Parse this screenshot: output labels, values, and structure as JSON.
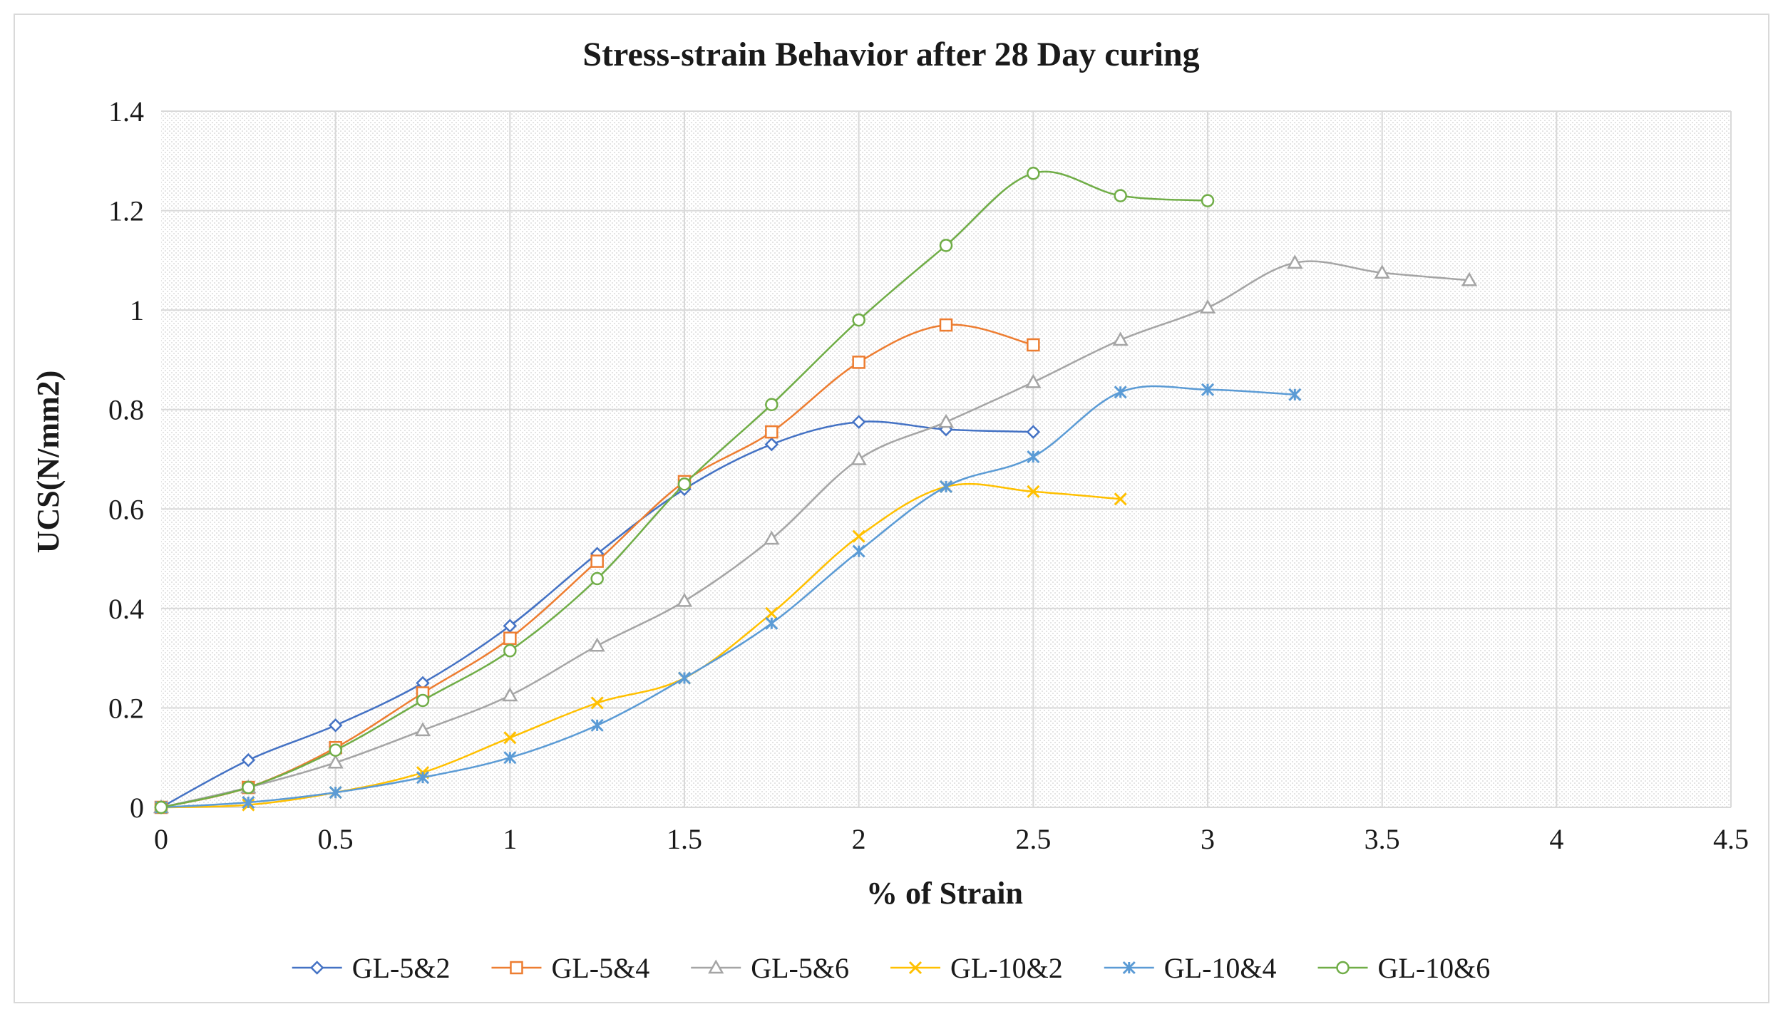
{
  "chart_data": {
    "type": "line",
    "title": "Stress-strain Behavior after 28 Day curing",
    "xlabel": "% of Strain",
    "ylabel": "UCS(N/mm2)",
    "xlim": [
      0,
      4.5
    ],
    "ylim": [
      0,
      1.4
    ],
    "xticks": [
      0,
      0.5,
      1,
      1.5,
      2,
      2.5,
      3,
      3.5,
      4,
      4.5
    ],
    "xtick_labels": [
      "0",
      "0.5",
      "1",
      "1.5",
      "2",
      "2.5",
      "3",
      "3.5",
      "4",
      "4.5"
    ],
    "yticks": [
      0,
      0.2,
      0.4,
      0.6,
      0.8,
      1,
      1.2,
      1.4
    ],
    "ytick_labels": [
      "0",
      "0.2",
      "0.4",
      "0.6",
      "0.8",
      "1",
      "1.2",
      "1.4"
    ],
    "grid": true,
    "legend_position": "bottom",
    "series": [
      {
        "name": "GL-5&2",
        "color": "#4472c4",
        "marker": "diamond",
        "x": [
          0,
          0.25,
          0.5,
          0.75,
          1,
          1.25,
          1.5,
          1.75,
          2,
          2.25,
          2.5
        ],
        "values": [
          0,
          0.095,
          0.165,
          0.25,
          0.365,
          0.51,
          0.64,
          0.73,
          0.775,
          0.76,
          0.755
        ]
      },
      {
        "name": "GL-5&4",
        "color": "#ed7d31",
        "marker": "square",
        "x": [
          0,
          0.25,
          0.5,
          0.75,
          1,
          1.25,
          1.5,
          1.75,
          2,
          2.25,
          2.5
        ],
        "values": [
          0,
          0.04,
          0.12,
          0.23,
          0.34,
          0.495,
          0.655,
          0.755,
          0.895,
          0.97,
          0.93
        ]
      },
      {
        "name": "GL-5&6",
        "color": "#a5a5a5",
        "marker": "triangle",
        "x": [
          0,
          0.25,
          0.5,
          0.75,
          1,
          1.25,
          1.5,
          1.75,
          2,
          2.25,
          2.5,
          2.75,
          3,
          3.25,
          3.5,
          3.75
        ],
        "values": [
          0,
          0.04,
          0.09,
          0.155,
          0.225,
          0.325,
          0.415,
          0.54,
          0.7,
          0.775,
          0.855,
          0.94,
          1.005,
          1.095,
          1.075,
          1.06
        ]
      },
      {
        "name": "GL-10&2",
        "color": "#ffc000",
        "marker": "x",
        "x": [
          0,
          0.25,
          0.5,
          0.75,
          1,
          1.25,
          1.5,
          1.75,
          2,
          2.25,
          2.5,
          2.75
        ],
        "values": [
          0,
          0.005,
          0.03,
          0.07,
          0.14,
          0.21,
          0.26,
          0.39,
          0.545,
          0.645,
          0.635,
          0.62
        ]
      },
      {
        "name": "GL-10&4",
        "color": "#5b9bd5",
        "marker": "star",
        "x": [
          0,
          0.25,
          0.5,
          0.75,
          1,
          1.25,
          1.5,
          1.75,
          2,
          2.25,
          2.5,
          2.75,
          3,
          3.25
        ],
        "values": [
          0,
          0.01,
          0.03,
          0.06,
          0.1,
          0.165,
          0.26,
          0.37,
          0.515,
          0.645,
          0.705,
          0.835,
          0.84,
          0.83
        ]
      },
      {
        "name": "GL-10&6",
        "color": "#70ad47",
        "marker": "circle",
        "x": [
          0,
          0.25,
          0.5,
          0.75,
          1,
          1.25,
          1.5,
          1.75,
          2,
          2.25,
          2.5,
          2.75,
          3
        ],
        "values": [
          0,
          0.04,
          0.115,
          0.215,
          0.315,
          0.46,
          0.65,
          0.81,
          0.98,
          1.13,
          1.275,
          1.23,
          1.22
        ]
      }
    ]
  }
}
